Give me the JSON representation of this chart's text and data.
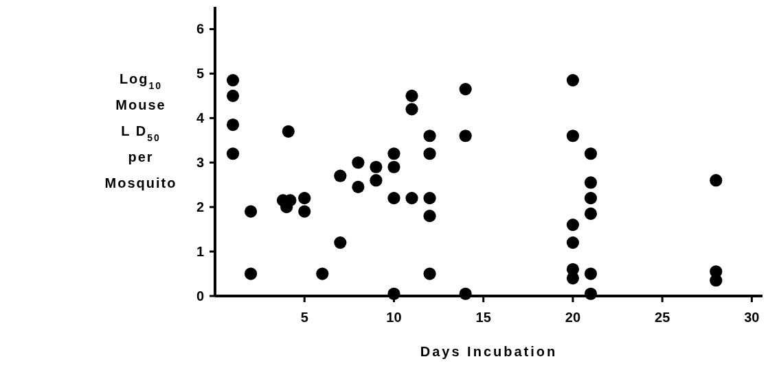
{
  "chart_data": {
    "type": "scatter",
    "xlabel": "Days Incubation",
    "ylabel": "Log$_{10}$\nMouse\nL D$_{50}$\nper\nMosquito",
    "x": [
      1,
      1,
      1,
      1,
      2,
      2,
      3.8,
      4.2,
      4,
      4.1,
      5,
      5,
      6,
      7,
      7,
      8,
      8,
      9,
      9,
      10,
      10,
      10,
      10,
      11,
      11,
      11,
      12,
      12,
      12,
      12,
      12,
      14,
      14,
      14,
      20,
      20,
      20,
      20,
      20,
      20,
      21,
      21,
      21,
      21,
      21,
      21,
      28,
      28,
      28
    ],
    "values": [
      4.85,
      4.5,
      3.85,
      3.2,
      1.9,
      0.5,
      2.15,
      2.15,
      2.0,
      3.7,
      2.2,
      1.9,
      0.5,
      2.7,
      1.2,
      3.0,
      2.45,
      2.9,
      2.6,
      3.2,
      2.9,
      2.2,
      0.05,
      4.5,
      4.2,
      2.2,
      3.6,
      3.2,
      2.2,
      1.8,
      0.5,
      4.65,
      3.6,
      0.05,
      4.85,
      3.6,
      1.6,
      1.2,
      0.6,
      0.4,
      3.2,
      2.55,
      2.2,
      1.85,
      0.5,
      0.05,
      2.6,
      0.55,
      0.35
    ],
    "color": "#000000",
    "marker": "circle",
    "xlim": [
      0,
      30.6
    ],
    "xticks": [
      5,
      10,
      15,
      20,
      25,
      30
    ],
    "ylim": [
      0,
      6.5
    ],
    "yticks": [
      0,
      1,
      2,
      3,
      4,
      5,
      6
    ]
  }
}
